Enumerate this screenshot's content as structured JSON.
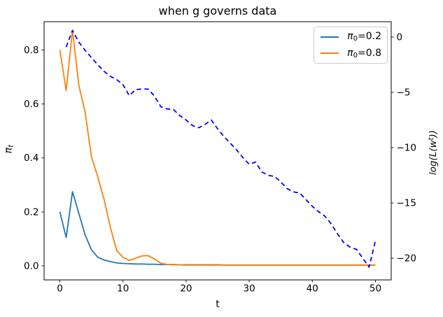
{
  "chart_data": {
    "type": "line",
    "title": "when g governs data",
    "xlabel": "t",
    "ylabel_left": {
      "main": "π",
      "sub": "t"
    },
    "ylabel_right": {
      "prefix": "log(L(w",
      "sup": "t",
      "suffix": "))"
    },
    "grid": false,
    "legend_position": "upper right",
    "xlim": [
      -2.5,
      52.5
    ],
    "ylim_left": [
      -0.052,
      0.905
    ],
    "ylim_right": [
      -21.96,
      1.39
    ],
    "xticks": [
      {
        "v": 0,
        "label": "0"
      },
      {
        "v": 10,
        "label": "10"
      },
      {
        "v": 20,
        "label": "20"
      },
      {
        "v": 30,
        "label": "30"
      },
      {
        "v": 40,
        "label": "40"
      },
      {
        "v": 50,
        "label": "50"
      }
    ],
    "yticks_left": [
      {
        "v": 0.0,
        "label": "0.0"
      },
      {
        "v": 0.2,
        "label": "0.2"
      },
      {
        "v": 0.4,
        "label": "0.4"
      },
      {
        "v": 0.6,
        "label": "0.6"
      },
      {
        "v": 0.8,
        "label": "0.8"
      }
    ],
    "yticks_right": [
      {
        "v": 0,
        "label": "0"
      },
      {
        "v": -5,
        "label": "−5"
      },
      {
        "v": -10,
        "label": "−10"
      },
      {
        "v": -15,
        "label": "−15"
      },
      {
        "v": -20,
        "label": "−20"
      }
    ],
    "legend": [
      {
        "pi": "π",
        "sub": "0",
        "eq": "=0.2",
        "color": "#1f77b4"
      },
      {
        "pi": "π",
        "sub": "0",
        "eq": "=0.8",
        "color": "#ff7f0e"
      }
    ],
    "series": [
      {
        "id": "pi0-02",
        "name": "π₀=0.2",
        "axis": "left",
        "color": "#1f77b4",
        "dash": null,
        "x": [
          0,
          1,
          2,
          3,
          4,
          5,
          6,
          7,
          8,
          9,
          10,
          11,
          12,
          13,
          14,
          15,
          16,
          17,
          18,
          19,
          20,
          21,
          22,
          23,
          24,
          25,
          26,
          27,
          28,
          29,
          30,
          31,
          32,
          33,
          34,
          35,
          36,
          37,
          38,
          39,
          40,
          41,
          42,
          43,
          44,
          45,
          46,
          47,
          48,
          49,
          50
        ],
        "y": [
          0.2,
          0.105,
          0.275,
          0.195,
          0.115,
          0.06,
          0.032,
          0.022,
          0.016,
          0.011,
          0.009,
          0.008,
          0.007,
          0.007,
          0.006,
          0.006,
          0.005,
          0.005,
          0.005,
          0.004,
          0.004,
          0.004,
          0.004,
          0.004,
          0.004,
          0.004,
          0.003,
          0.003,
          0.003,
          0.003,
          0.003,
          0.003,
          0.003,
          0.003,
          0.003,
          0.003,
          0.003,
          0.003,
          0.003,
          0.003,
          0.003,
          0.003,
          0.003,
          0.003,
          0.003,
          0.003,
          0.003,
          0.003,
          0.003,
          0.003,
          0.003
        ]
      },
      {
        "id": "pi0-08",
        "name": "π₀=0.8",
        "axis": "left",
        "color": "#ff7f0e",
        "dash": null,
        "x": [
          0,
          1,
          2,
          3,
          4,
          5,
          6,
          7,
          8,
          9,
          10,
          11,
          12,
          13,
          14,
          15,
          16,
          17,
          18,
          19,
          20,
          21,
          22,
          23,
          24,
          25,
          26,
          27,
          28,
          29,
          30,
          31,
          32,
          33,
          34,
          35,
          36,
          37,
          38,
          39,
          40,
          41,
          42,
          43,
          44,
          45,
          46,
          47,
          48,
          49,
          50
        ],
        "y": [
          0.8,
          0.65,
          0.873,
          0.67,
          0.57,
          0.405,
          0.33,
          0.247,
          0.143,
          0.057,
          0.032,
          0.02,
          0.028,
          0.037,
          0.038,
          0.025,
          0.01,
          0.005,
          0.004,
          0.004,
          0.003,
          0.003,
          0.003,
          0.003,
          0.003,
          0.003,
          0.003,
          0.003,
          0.003,
          0.003,
          0.003,
          0.003,
          0.003,
          0.003,
          0.003,
          0.003,
          0.003,
          0.003,
          0.003,
          0.003,
          0.003,
          0.003,
          0.003,
          0.003,
          0.003,
          0.003,
          0.003,
          0.003,
          0.003,
          0.003,
          0.003
        ]
      },
      {
        "id": "log-likelihood",
        "name": "log(L(w^t))",
        "axis": "right",
        "color": "#0000ff",
        "dash": "6.5,4.5",
        "x": [
          1,
          2,
          3,
          4,
          5,
          6,
          7,
          8,
          9,
          10,
          11,
          12,
          13,
          14,
          15,
          16,
          17,
          18,
          19,
          20,
          21,
          22,
          23,
          24,
          25,
          26,
          27,
          28,
          29,
          30,
          31,
          32,
          33,
          34,
          35,
          36,
          37,
          38,
          39,
          40,
          41,
          42,
          43,
          44,
          45,
          46,
          47,
          48,
          49,
          50
        ],
        "y": [
          -0.9,
          0.6,
          -0.45,
          -1.2,
          -1.85,
          -2.5,
          -3.1,
          -3.55,
          -3.85,
          -4.3,
          -5.3,
          -4.75,
          -4.7,
          -4.7,
          -5.35,
          -6.3,
          -6.5,
          -6.55,
          -7.1,
          -7.5,
          -8.0,
          -8.2,
          -7.9,
          -7.5,
          -8.3,
          -9.0,
          -9.6,
          -10.2,
          -10.9,
          -11.5,
          -11.3,
          -12.2,
          -12.5,
          -12.6,
          -13.1,
          -13.7,
          -14.0,
          -14.1,
          -14.7,
          -15.3,
          -15.8,
          -16.2,
          -16.9,
          -17.8,
          -18.6,
          -19.0,
          -19.2,
          -20.0,
          -20.8,
          -18.4
        ]
      }
    ]
  }
}
